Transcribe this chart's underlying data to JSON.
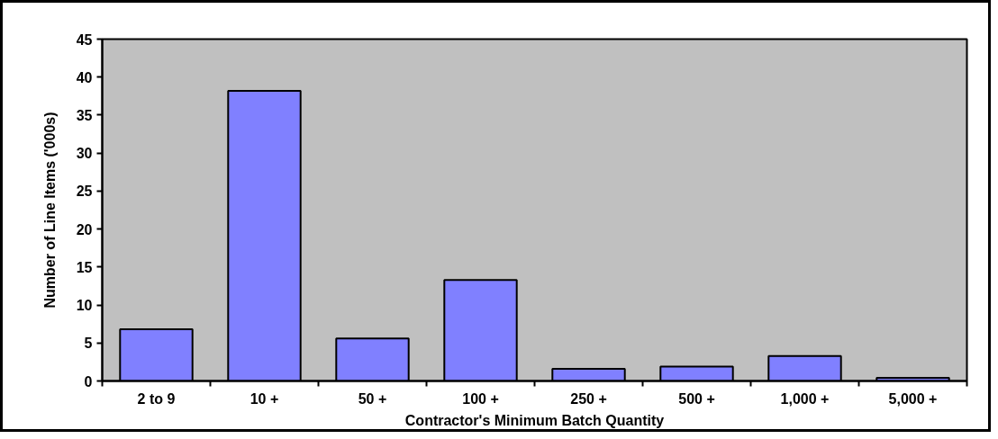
{
  "chart_data": {
    "type": "bar",
    "xlabel": "Contractor's Minimum Batch Quantity",
    "ylabel": "Number of Line Items ('000s)",
    "categories": [
      "2 to 9",
      "10 +",
      "50 +",
      "100 +",
      "250 +",
      "500 +",
      "1,000 +",
      "5,000 +"
    ],
    "values": [
      6.8,
      38.2,
      5.6,
      13.3,
      1.6,
      1.9,
      3.3,
      0.4
    ],
    "color": "#8080ff",
    "ylim": [
      0,
      45
    ],
    "yticks": [
      0,
      5,
      10,
      15,
      20,
      25,
      30,
      35,
      40,
      45
    ],
    "grid": false
  }
}
